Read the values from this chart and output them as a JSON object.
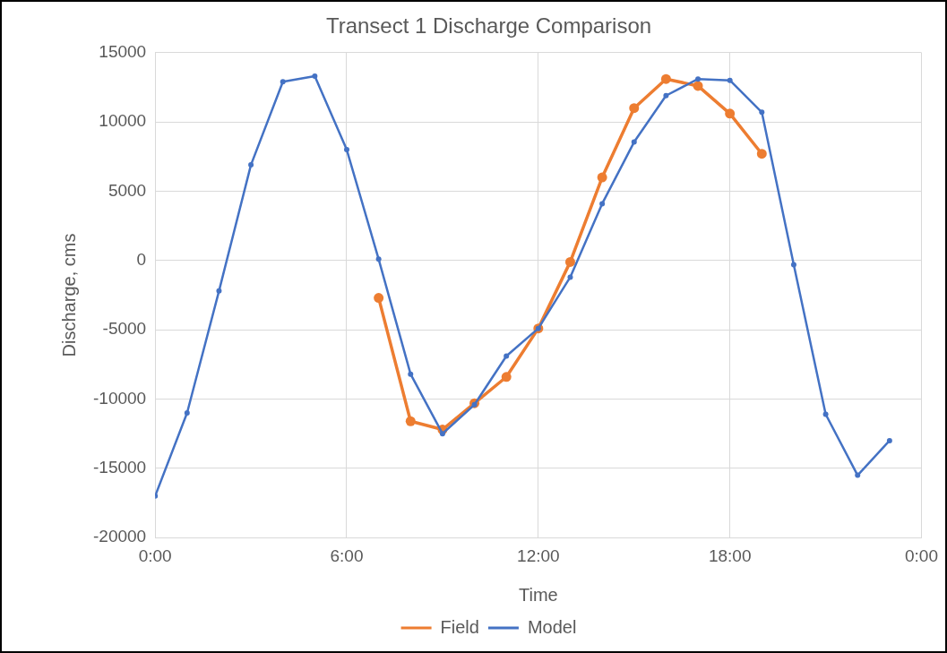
{
  "chart_data": {
    "type": "line",
    "title": "Transect 1 Discharge Comparison",
    "xlabel": "Time",
    "ylabel": "Discharge, cms",
    "xlim": [
      0,
      24
    ],
    "xticks": [
      {
        "value": 0,
        "label": "0:00"
      },
      {
        "value": 6,
        "label": "6:00"
      },
      {
        "value": 12,
        "label": "12:00"
      },
      {
        "value": 18,
        "label": "18:00"
      },
      {
        "value": 24,
        "label": "0:00"
      }
    ],
    "ylim": [
      -20000,
      15000
    ],
    "yticks": [
      -20000,
      -15000,
      -10000,
      -5000,
      0,
      5000,
      10000,
      15000
    ],
    "series": [
      {
        "name": "Field",
        "color": "#ed7d31",
        "x": [
          7,
          8,
          9,
          10,
          11,
          12,
          13,
          14,
          15,
          16,
          17,
          18,
          19
        ],
        "values": [
          -2700,
          -11600,
          -12200,
          -10300,
          -8400,
          -4900,
          -100,
          6000,
          11000,
          13100,
          12600,
          10600,
          7700
        ]
      },
      {
        "name": "Model",
        "color": "#4472c4",
        "x": [
          0,
          1,
          2,
          3,
          4,
          5,
          6,
          7,
          8,
          9,
          10,
          11,
          12,
          13,
          14,
          15,
          16,
          17,
          18,
          19,
          20,
          21,
          22,
          23
        ],
        "values": [
          -17000,
          -11000,
          -2200,
          6900,
          12900,
          13300,
          8000,
          100,
          -8200,
          -12500,
          -10400,
          -6900,
          -4900,
          -1200,
          4100,
          8550,
          11900,
          13100,
          13000,
          10700,
          -300,
          -11100,
          -15500,
          -13000
        ]
      }
    ],
    "grid": true,
    "legend": "bottom",
    "marker": "circle",
    "line_style": "solid"
  }
}
